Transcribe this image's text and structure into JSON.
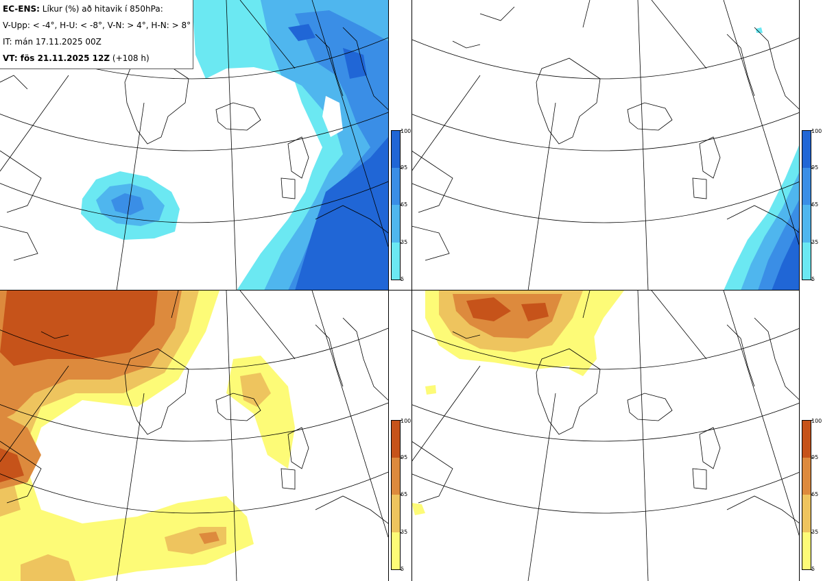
{
  "legend": {
    "line1_bold": "EC-ENS:",
    "line1_rest": " Líkur (%) að hitavik í 850hPa:",
    "line2": "V-Upp: < -4°, H-U: < -8°, V-N: > 4°, H-N: > 8°",
    "line3": "IT: mán 17.11.2025 00Z",
    "line4_bold": "VT: fös 21.11.2025 12Z",
    "line4_rest": " (+108 h)"
  },
  "colorbars": {
    "cold": {
      "ticks": [
        "100",
        "95",
        "65",
        "35",
        "5"
      ],
      "colors": [
        "#2066d6",
        "#3a8ee6",
        "#4fb6ee",
        "#6be8f2"
      ]
    },
    "warm": {
      "ticks": [
        "100",
        "95",
        "65",
        "35",
        "5"
      ],
      "colors": [
        "#c6531a",
        "#dd8a3d",
        "#eec45e",
        "#fdfb77"
      ]
    }
  },
  "panels": [
    {
      "id": "V-Upp",
      "scheme": "cold"
    },
    {
      "id": "H-U",
      "scheme": "cold"
    },
    {
      "id": "V-N",
      "scheme": "warm"
    },
    {
      "id": "H-N",
      "scheme": "warm"
    }
  ]
}
